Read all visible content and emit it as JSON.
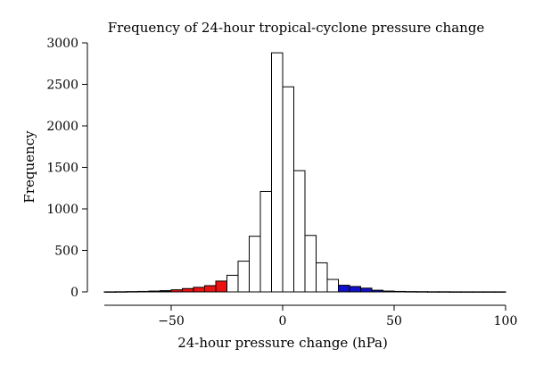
{
  "chart_data": {
    "type": "bar",
    "title": "Frequency of 24-hour tropical-cyclone pressure change",
    "xlabel": "24-hour pressure change (hPa)",
    "ylabel": "Frequency",
    "xlim": [
      -80,
      100
    ],
    "ylim": [
      0,
      3000
    ],
    "xticks": [
      -50,
      0,
      50,
      100
    ],
    "xtick_labels": [
      "−50",
      "0",
      "50",
      "100"
    ],
    "yticks": [
      0,
      500,
      1000,
      1500,
      2000,
      2500,
      3000
    ],
    "ytick_labels": [
      "0",
      "500",
      "1000",
      "1500",
      "2000",
      "2500",
      "3000"
    ],
    "bin_width": 5,
    "bin_starts": [
      -80,
      -75,
      -70,
      -65,
      -60,
      -55,
      -50,
      -45,
      -40,
      -35,
      -30,
      -25,
      -20,
      -15,
      -10,
      -5,
      0,
      5,
      10,
      15,
      20,
      25,
      30,
      35,
      40,
      45,
      50,
      55,
      60,
      65,
      70,
      75,
      80,
      85,
      90,
      95
    ],
    "values": [
      1,
      2,
      4,
      6,
      10,
      15,
      25,
      40,
      55,
      75,
      130,
      200,
      370,
      670,
      1210,
      2880,
      2470,
      1460,
      680,
      350,
      150,
      80,
      65,
      45,
      20,
      10,
      6,
      4,
      3,
      2,
      2,
      1,
      1,
      1,
      1,
      1
    ],
    "highlight": {
      "intensification": {
        "range": [
          -50,
          -25
        ],
        "color": "#ee1111"
      },
      "weakening": {
        "range": [
          25,
          45
        ],
        "color": "#1111cc"
      }
    },
    "colors": {
      "default_fill": "#ffffff",
      "deep_negative_fill": "#000000",
      "edge": "#000000"
    },
    "grid": false,
    "legend": "none"
  }
}
